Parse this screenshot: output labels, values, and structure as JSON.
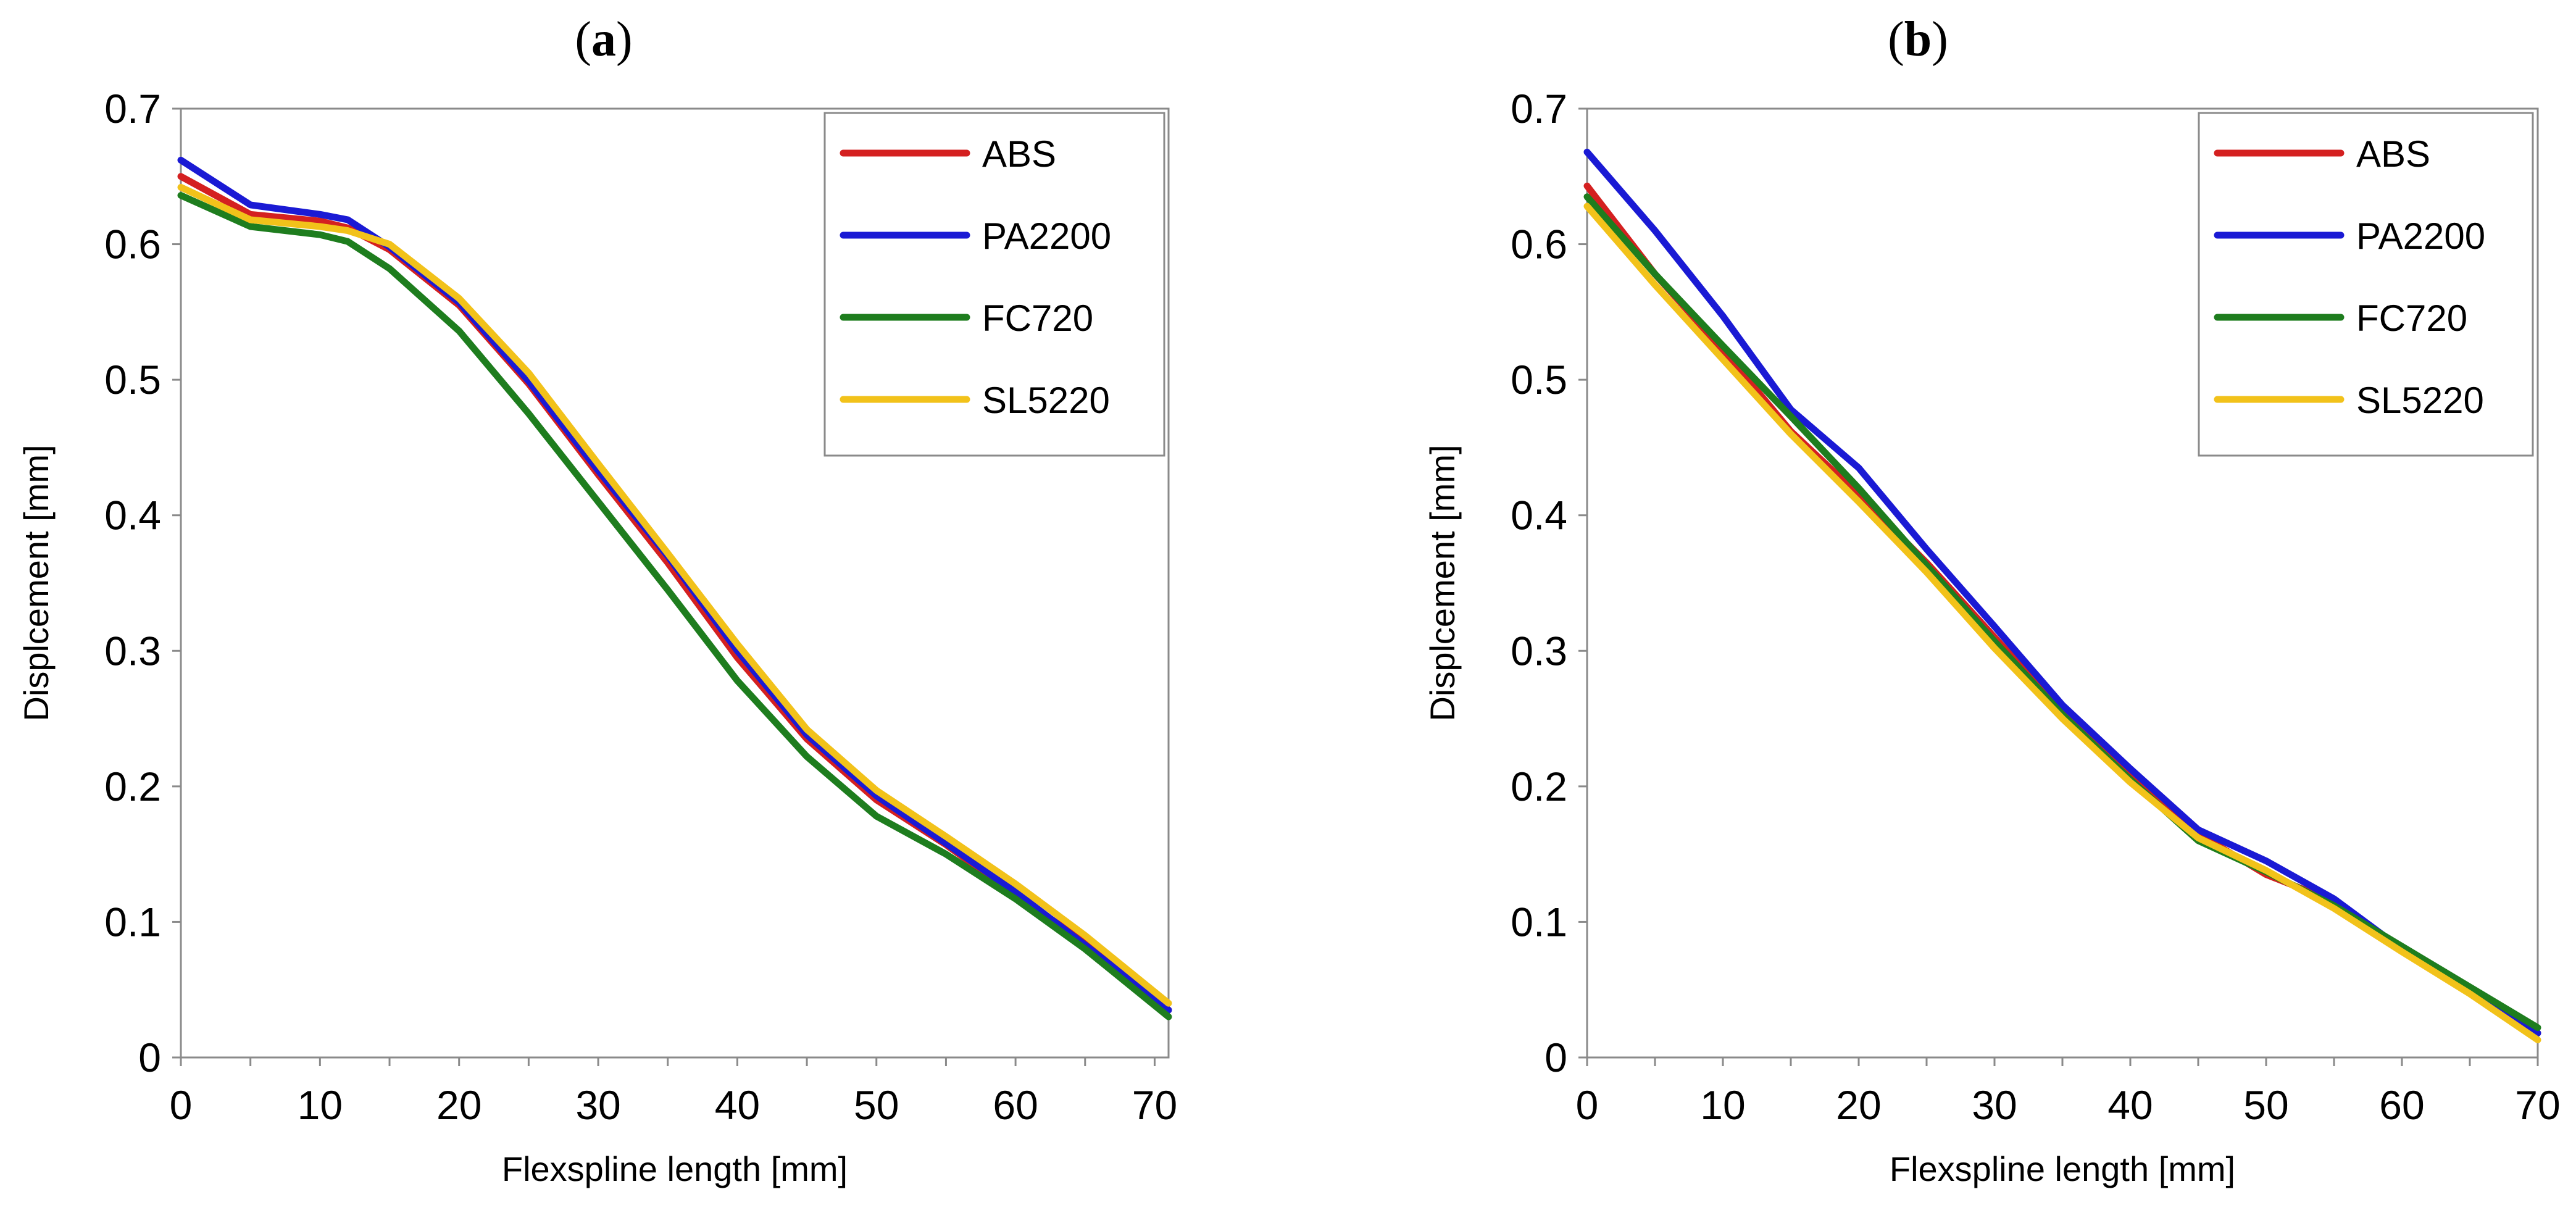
{
  "chart_data": [
    {
      "type": "line",
      "panel_label": "a",
      "xlabel": "Flexspline length [mm]",
      "ylabel": "Displcement [mm]",
      "xlim": [
        0,
        71
      ],
      "ylim": [
        0,
        0.7
      ],
      "xticks": [
        0,
        10,
        20,
        30,
        40,
        50,
        60,
        70
      ],
      "yticks": [
        0,
        0.1,
        0.2,
        0.3,
        0.4,
        0.5,
        0.6,
        0.7
      ],
      "grid": false,
      "legend_position": "top-right",
      "series": [
        {
          "name": "ABS",
          "color": "#d42020",
          "x": [
            0,
            5,
            10,
            12,
            15,
            20,
            25,
            30,
            35,
            40,
            45,
            50,
            55,
            60,
            65,
            71
          ],
          "y": [
            0.65,
            0.622,
            0.617,
            0.612,
            0.596,
            0.555,
            0.497,
            0.43,
            0.365,
            0.295,
            0.235,
            0.19,
            0.157,
            0.12,
            0.085,
            0.035
          ]
        },
        {
          "name": "PA2200",
          "color": "#1a1ad4",
          "x": [
            0,
            5,
            10,
            12,
            15,
            20,
            25,
            30,
            35,
            40,
            45,
            50,
            55,
            60,
            65,
            71
          ],
          "y": [
            0.662,
            0.629,
            0.622,
            0.618,
            0.598,
            0.557,
            0.499,
            0.433,
            0.37,
            0.3,
            0.238,
            0.193,
            0.158,
            0.122,
            0.083,
            0.035
          ]
        },
        {
          "name": "FC720",
          "color": "#1e7d1e",
          "x": [
            0,
            5,
            10,
            12,
            15,
            20,
            25,
            30,
            35,
            40,
            45,
            50,
            55,
            60,
            65,
            71
          ],
          "y": [
            0.636,
            0.613,
            0.607,
            0.602,
            0.582,
            0.536,
            0.475,
            0.41,
            0.345,
            0.278,
            0.222,
            0.178,
            0.15,
            0.117,
            0.08,
            0.03
          ]
        },
        {
          "name": "SL5220",
          "color": "#f2c21a",
          "x": [
            0,
            5,
            10,
            12,
            15,
            20,
            25,
            30,
            35,
            40,
            45,
            50,
            55,
            60,
            65,
            71
          ],
          "y": [
            0.642,
            0.618,
            0.613,
            0.61,
            0.6,
            0.56,
            0.505,
            0.438,
            0.372,
            0.305,
            0.242,
            0.197,
            0.163,
            0.128,
            0.09,
            0.04
          ]
        }
      ]
    },
    {
      "type": "line",
      "panel_label": "b",
      "xlabel": "Flexspline length [mm]",
      "ylabel": "Displcement [mm]",
      "xlim": [
        0,
        70
      ],
      "ylim": [
        0,
        0.7
      ],
      "xticks": [
        0,
        10,
        20,
        30,
        40,
        50,
        60,
        70
      ],
      "yticks": [
        0,
        0.1,
        0.2,
        0.3,
        0.4,
        0.5,
        0.6,
        0.7
      ],
      "grid": false,
      "legend_position": "top-right",
      "series": [
        {
          "name": "ABS",
          "color": "#d42020",
          "x": [
            0,
            5,
            10,
            15,
            20,
            25,
            30,
            35,
            40,
            45,
            50,
            55,
            60,
            65,
            70
          ],
          "y": [
            0.643,
            0.578,
            0.522,
            0.462,
            0.415,
            0.365,
            0.31,
            0.255,
            0.21,
            0.165,
            0.135,
            0.115,
            0.08,
            0.05,
            0.018
          ]
        },
        {
          "name": "PA2200",
          "color": "#1a1ad4",
          "x": [
            0,
            5,
            10,
            15,
            20,
            25,
            30,
            35,
            40,
            45,
            50,
            55,
            60,
            65,
            70
          ],
          "y": [
            0.668,
            0.61,
            0.547,
            0.478,
            0.435,
            0.375,
            0.318,
            0.26,
            0.213,
            0.168,
            0.145,
            0.117,
            0.08,
            0.05,
            0.018
          ]
        },
        {
          "name": "FC720",
          "color": "#1e7d1e",
          "x": [
            0,
            5,
            10,
            15,
            20,
            25,
            30,
            35,
            40,
            45,
            50,
            55,
            60,
            65,
            70
          ],
          "y": [
            0.635,
            0.578,
            0.525,
            0.473,
            0.42,
            0.363,
            0.307,
            0.253,
            0.205,
            0.16,
            0.137,
            0.112,
            0.082,
            0.052,
            0.022
          ]
        },
        {
          "name": "SL5220",
          "color": "#f2c21a",
          "x": [
            0,
            5,
            10,
            15,
            20,
            25,
            30,
            35,
            40,
            45,
            50,
            55,
            60,
            65,
            70
          ],
          "y": [
            0.628,
            0.57,
            0.515,
            0.46,
            0.41,
            0.358,
            0.302,
            0.25,
            0.203,
            0.162,
            0.138,
            0.11,
            0.078,
            0.047,
            0.013
          ]
        }
      ]
    }
  ]
}
